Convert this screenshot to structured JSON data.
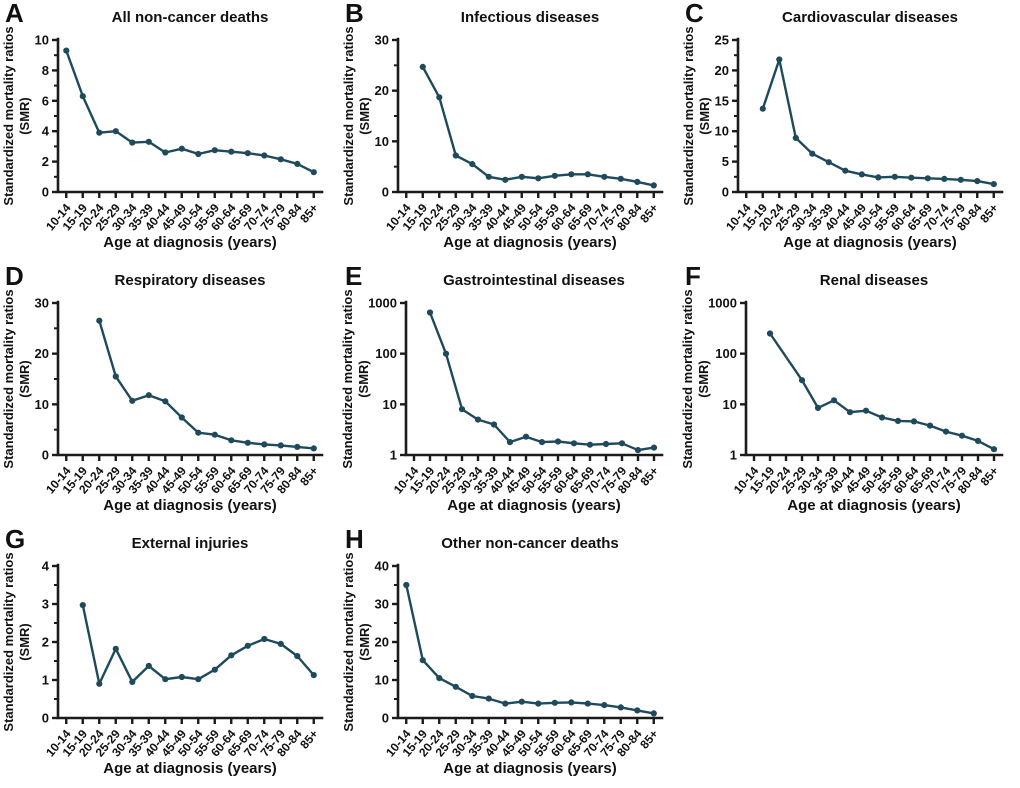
{
  "figure": {
    "line_color": "#1f4a5c",
    "axis_color": "#1b1b1b",
    "text_color": "#111111",
    "xlabel": "Age at diagnosis (years)",
    "ylabel_line1": "Standardized mortality ratios",
    "ylabel_line2": "(SMR)"
  },
  "chart_data": [
    {
      "letter": "A",
      "title": "All non-cancer deaths",
      "type": "line",
      "scale": "linear",
      "ylim": [
        0,
        10
      ],
      "yticks": [
        0,
        2,
        4,
        6,
        8,
        10
      ],
      "minor_step": 1,
      "xlabel": "Age at diagnosis (years)",
      "ylabel": "Standardized mortality ratios (SMR)",
      "categories": [
        "10-14",
        "15-19",
        "20-24",
        "25-29",
        "30-34",
        "35-39",
        "40-44",
        "45-49",
        "50-54",
        "55-59",
        "60-64",
        "65-69",
        "70-74",
        "75-79",
        "80-84",
        "85+"
      ],
      "values": [
        9.3,
        6.3,
        3.9,
        4.0,
        3.25,
        3.3,
        2.6,
        2.85,
        2.5,
        2.75,
        2.65,
        2.55,
        2.4,
        2.15,
        1.85,
        1.3
      ]
    },
    {
      "letter": "B",
      "title": "Infectious diseases",
      "type": "line",
      "scale": "linear",
      "ylim": [
        0,
        30
      ],
      "yticks": [
        0,
        10,
        20,
        30
      ],
      "minor_step": 5,
      "xlabel": "Age at diagnosis (years)",
      "ylabel": "Standardized mortality ratios (SMR)",
      "categories": [
        "10-14",
        "15-19",
        "20-24",
        "25-29",
        "30-34",
        "35-39",
        "40-44",
        "45-49",
        "50-54",
        "55-59",
        "60-64",
        "65-69",
        "70-74",
        "75-79",
        "80-84",
        "85+"
      ],
      "values": [
        null,
        24.7,
        18.7,
        7.2,
        5.5,
        3.0,
        2.4,
        3.0,
        2.7,
        3.2,
        3.5,
        3.5,
        3.0,
        2.6,
        2.0,
        1.3
      ]
    },
    {
      "letter": "C",
      "title": "Cardiovascular diseases",
      "type": "line",
      "scale": "linear",
      "ylim": [
        0,
        25
      ],
      "yticks": [
        0,
        5,
        10,
        15,
        20,
        25
      ],
      "minor_step": 2.5,
      "xlabel": "Age at diagnosis (years)",
      "ylabel": "Standardized mortality ratios (SMR)",
      "categories": [
        "10-14",
        "15-19",
        "20-24",
        "25-29",
        "30-34",
        "35-39",
        "40-44",
        "45-49",
        "50-54",
        "55-59",
        "60-64",
        "65-69",
        "70-74",
        "75-79",
        "80-84",
        "85+"
      ],
      "values": [
        null,
        13.7,
        21.8,
        8.9,
        6.3,
        4.9,
        3.5,
        2.9,
        2.4,
        2.5,
        2.35,
        2.25,
        2.15,
        2.0,
        1.8,
        1.3
      ]
    },
    {
      "letter": "D",
      "title": "Respiratory diseases",
      "type": "line",
      "scale": "linear",
      "ylim": [
        0,
        30
      ],
      "yticks": [
        0,
        10,
        20,
        30
      ],
      "minor_step": 5,
      "xlabel": "Age at diagnosis (years)",
      "ylabel": "Standardized mortality ratios (SMR)",
      "categories": [
        "10-14",
        "15-19",
        "20-24",
        "25-29",
        "30-34",
        "35-39",
        "40-44",
        "45-49",
        "50-54",
        "55-59",
        "60-64",
        "65-69",
        "70-74",
        "75-79",
        "80-84",
        "85+"
      ],
      "values": [
        null,
        null,
        26.5,
        15.5,
        10.7,
        11.8,
        10.6,
        7.4,
        4.4,
        4.0,
        2.9,
        2.4,
        2.1,
        1.9,
        1.6,
        1.3
      ]
    },
    {
      "letter": "E",
      "title": "Gastrointestinal diseases",
      "type": "line",
      "scale": "log",
      "ylim": [
        1,
        1000
      ],
      "yticks": [
        1,
        10,
        100,
        1000
      ],
      "minor_step": null,
      "xlabel": "Age at diagnosis (years)",
      "ylabel": "Standardized mortality ratios (SMR)",
      "categories": [
        "10-14",
        "15-19",
        "20-24",
        "25-29",
        "30-34",
        "35-39",
        "40-44",
        "45-49",
        "50-54",
        "55-59",
        "60-64",
        "65-69",
        "70-74",
        "75-79",
        "80-84",
        "85+"
      ],
      "values": [
        null,
        650,
        100,
        8,
        5,
        4,
        1.8,
        2.3,
        1.8,
        1.85,
        1.7,
        1.6,
        1.65,
        1.7,
        1.25,
        1.4
      ]
    },
    {
      "letter": "F",
      "title": "Renal diseases",
      "type": "line",
      "scale": "log",
      "ylim": [
        1,
        1000
      ],
      "yticks": [
        1,
        10,
        100,
        1000
      ],
      "minor_step": null,
      "xlabel": "Age at diagnosis (years)",
      "ylabel": "Standardized mortality ratios (SMR)",
      "categories": [
        "10-14",
        "15-19",
        "20-24",
        "25-29",
        "30-34",
        "35-39",
        "40-44",
        "45-49",
        "50-54",
        "55-59",
        "60-64",
        "65-69",
        "70-74",
        "75-79",
        "80-84",
        "85+"
      ],
      "values": [
        null,
        250,
        null,
        30,
        8.5,
        12,
        7,
        7.5,
        5.5,
        4.7,
        4.6,
        3.8,
        2.9,
        2.4,
        1.9,
        1.3
      ]
    },
    {
      "letter": "G",
      "title": "External injuries",
      "type": "line",
      "scale": "linear",
      "ylim": [
        0,
        4
      ],
      "yticks": [
        0,
        1,
        2,
        3,
        4
      ],
      "minor_step": 0.5,
      "xlabel": "Age at diagnosis (years)",
      "ylabel": "Standardized mortality ratios (SMR)",
      "categories": [
        "10-14",
        "15-19",
        "20-24",
        "25-29",
        "30-34",
        "35-39",
        "40-44",
        "45-49",
        "50-54",
        "55-59",
        "60-64",
        "65-69",
        "70-74",
        "75-79",
        "80-84",
        "85+"
      ],
      "values": [
        null,
        2.97,
        0.9,
        1.82,
        0.95,
        1.37,
        1.02,
        1.08,
        1.02,
        1.27,
        1.65,
        1.9,
        2.08,
        1.95,
        1.63,
        1.13
      ]
    },
    {
      "letter": "H",
      "title": "Other non-cancer deaths",
      "type": "line",
      "scale": "linear",
      "ylim": [
        0,
        40
      ],
      "yticks": [
        0,
        10,
        20,
        30,
        40
      ],
      "minor_step": 5,
      "xlabel": "Age at diagnosis (years)",
      "ylabel": "Standardized mortality ratios (SMR)",
      "categories": [
        "10-14",
        "15-19",
        "20-24",
        "25-29",
        "30-34",
        "35-39",
        "40-44",
        "45-49",
        "50-54",
        "55-59",
        "60-64",
        "65-69",
        "70-74",
        "75-79",
        "80-84",
        "85+"
      ],
      "values": [
        35,
        15.2,
        10.5,
        8.2,
        5.8,
        5.1,
        3.8,
        4.3,
        3.8,
        4.0,
        4.1,
        3.8,
        3.4,
        2.8,
        2.0,
        1.2
      ]
    }
  ]
}
